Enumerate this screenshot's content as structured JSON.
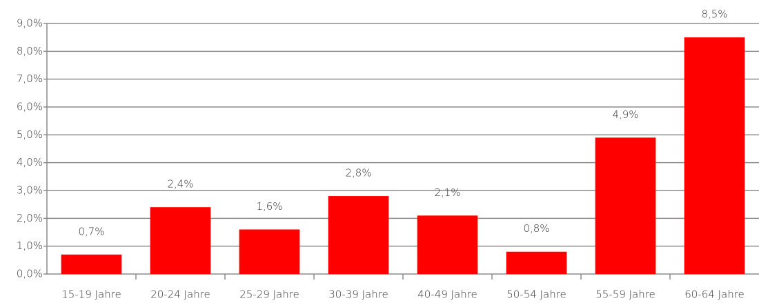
{
  "chart_data": {
    "type": "bar",
    "categories": [
      "15-19 Jahre",
      "20-24 Jahre",
      "25-29 Jahre",
      "30-39 Jahre",
      "40-49 Jahre",
      "50-54 Jahre",
      "55-59 Jahre",
      "60-64 Jahre"
    ],
    "values": [
      0.7,
      2.4,
      1.6,
      2.8,
      2.1,
      0.8,
      4.9,
      8.5
    ],
    "value_labels": [
      "0,7%",
      "2,4%",
      "1,6%",
      "2,8%",
      "2,1%",
      "0,8%",
      "4,9%",
      "8,5%"
    ],
    "color": "#ff0000",
    "ylim": [
      0,
      9
    ],
    "yticks": [
      {
        "value": 0,
        "label": "0,0%"
      },
      {
        "value": 1,
        "label": "1,0%"
      },
      {
        "value": 2,
        "label": "2,0%"
      },
      {
        "value": 3,
        "label": "3,0%"
      },
      {
        "value": 4,
        "label": "4,0%"
      },
      {
        "value": 5,
        "label": "5,0%"
      },
      {
        "value": 6,
        "label": "6,0%"
      },
      {
        "value": 7,
        "label": "7,0%"
      },
      {
        "value": 8,
        "label": "8,0%"
      },
      {
        "value": 9,
        "label": "9,0%"
      }
    ],
    "grid": true
  }
}
